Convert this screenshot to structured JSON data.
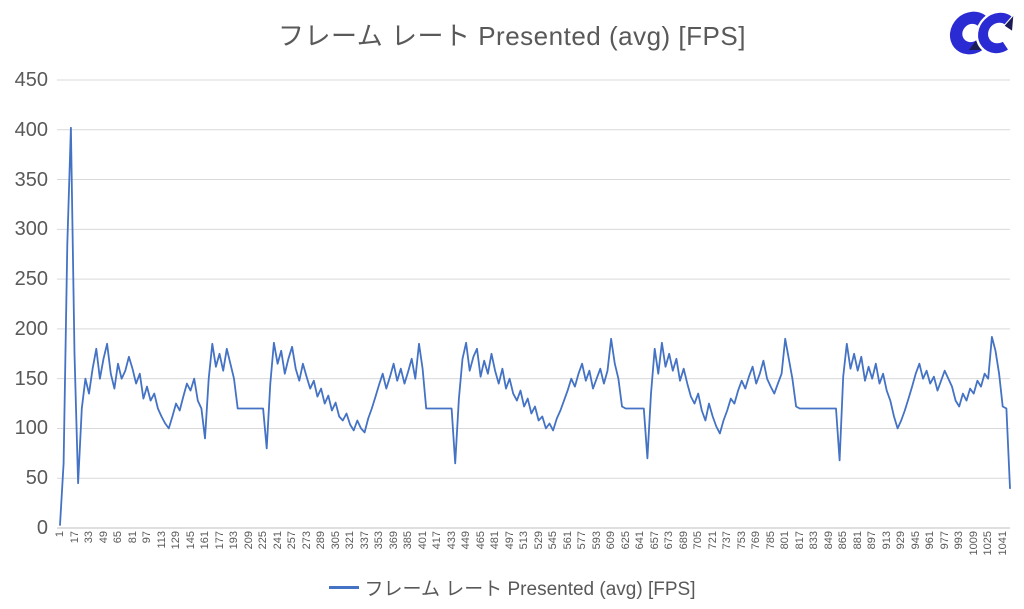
{
  "header": {
    "title": "フレーム レート Presented (avg) [FPS]"
  },
  "legend": {
    "label": "フレーム レート Presented (avg) [FPS]"
  },
  "logo": {
    "glyph": "CC",
    "primary_color": "#2B2BD4",
    "accent_color": "#1B1B55"
  },
  "colors": {
    "line": "#4472C4",
    "grid": "#D9D9D9",
    "axis": "#BFBFBF",
    "text": "#595959",
    "background": "#FFFFFF"
  },
  "chart_data": {
    "type": "line",
    "title": "フレーム レート Presented (avg) [FPS]",
    "series_name": "フレーム レート Presented (avg) [FPS]",
    "xlabel": "",
    "ylabel": "",
    "ylim": [
      0,
      450
    ],
    "y_ticks": [
      0,
      50,
      100,
      150,
      200,
      250,
      300,
      350,
      400,
      450
    ],
    "x_tick_labels": [
      1,
      17,
      33,
      49,
      65,
      81,
      97,
      113,
      129,
      145,
      161,
      177,
      193,
      209,
      225,
      241,
      257,
      273,
      289,
      305,
      321,
      337,
      353,
      369,
      385,
      401,
      417,
      433,
      449,
      465,
      481,
      497,
      513,
      529,
      545,
      561,
      577,
      593,
      609,
      625,
      641,
      657,
      673,
      689,
      705,
      721,
      737,
      753,
      769,
      785,
      801,
      817,
      833,
      849,
      865,
      881,
      897,
      913,
      929,
      945,
      961,
      977,
      993,
      1009,
      1025,
      1041
    ],
    "x_range": [
      1,
      1049
    ],
    "x_start": 1,
    "x_step": 4,
    "grid": "horizontal",
    "legend_position": "bottom",
    "values": [
      3,
      65,
      285,
      402,
      175,
      45,
      120,
      150,
      135,
      160,
      180,
      150,
      170,
      185,
      155,
      140,
      165,
      150,
      158,
      172,
      160,
      145,
      155,
      130,
      142,
      128,
      135,
      120,
      112,
      105,
      100,
      112,
      125,
      118,
      132,
      145,
      138,
      150,
      128,
      120,
      90,
      150,
      185,
      162,
      175,
      158,
      180,
      165,
      150,
      120,
      120,
      120,
      120,
      120,
      120,
      120,
      120,
      80,
      145,
      186,
      165,
      178,
      155,
      170,
      182,
      160,
      148,
      165,
      152,
      140,
      148,
      132,
      140,
      125,
      133,
      118,
      126,
      112,
      108,
      115,
      104,
      98,
      108,
      100,
      96,
      110,
      120,
      132,
      144,
      155,
      140,
      152,
      165,
      148,
      160,
      145,
      157,
      170,
      150,
      185,
      160,
      120,
      120,
      120,
      120,
      120,
      120,
      120,
      120,
      65,
      130,
      170,
      186,
      158,
      172,
      180,
      152,
      168,
      155,
      175,
      158,
      145,
      160,
      140,
      150,
      135,
      128,
      138,
      122,
      130,
      115,
      122,
      108,
      112,
      100,
      105,
      98,
      110,
      118,
      128,
      138,
      150,
      142,
      155,
      165,
      148,
      158,
      140,
      150,
      160,
      145,
      158,
      190,
      165,
      150,
      122,
      120,
      120,
      120,
      120,
      120,
      120,
      70,
      135,
      180,
      155,
      186,
      162,
      175,
      158,
      170,
      148,
      160,
      145,
      132,
      125,
      135,
      118,
      108,
      125,
      112,
      102,
      95,
      108,
      118,
      130,
      125,
      138,
      148,
      140,
      152,
      162,
      145,
      155,
      168,
      150,
      142,
      135,
      145,
      155,
      190,
      170,
      150,
      122,
      120,
      120,
      120,
      120,
      120,
      120,
      120,
      120,
      120,
      120,
      120,
      68,
      152,
      185,
      160,
      175,
      158,
      172,
      148,
      162,
      150,
      165,
      145,
      155,
      138,
      128,
      112,
      100,
      108,
      118,
      130,
      142,
      155,
      165,
      150,
      158,
      145,
      152,
      138,
      148,
      158,
      150,
      142,
      128,
      122,
      135,
      128,
      140,
      135,
      148,
      142,
      155,
      150,
      192,
      178,
      155,
      122,
      120,
      40
    ]
  }
}
